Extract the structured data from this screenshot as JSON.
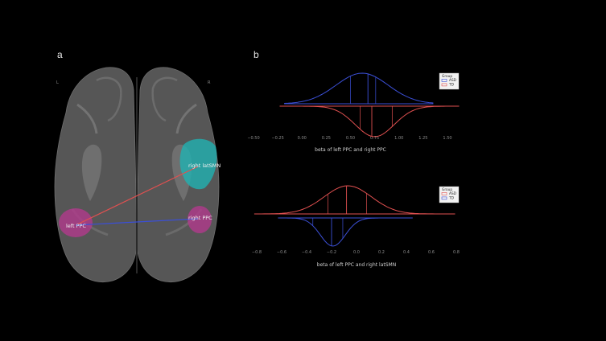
{
  "panels": {
    "a": {
      "label": "a",
      "side_left": "L",
      "side_right": "R",
      "regions": {
        "left_ppc": "left PPC",
        "right_ppc": "right PPC",
        "right_latsmn": "right latSMN"
      },
      "colors": {
        "brain": "#5a5a5a",
        "ppc": "#b23a8c",
        "latsmn": "#1fb3b3",
        "asd_line": "#e05050",
        "td_line": "#3b4fd6"
      }
    },
    "b": {
      "label": "b"
    }
  },
  "chart_data": [
    {
      "type": "violin",
      "xlabel": "beta of left PPC and right PPC",
      "ylabel": "",
      "xlim": [
        -0.5,
        1.5
      ],
      "ticks": [
        "-0.50",
        "-0.25",
        "0.00",
        "0.25",
        "0.50",
        "0.75",
        "1.00",
        "1.25",
        "1.50"
      ],
      "legend": {
        "title": "Group",
        "position": "top-right",
        "entries": [
          {
            "name": "ASD",
            "color": "#3b4fd6"
          },
          {
            "name": "TD",
            "color": "#e05050"
          }
        ]
      },
      "series": [
        {
          "name": "ASD",
          "side": "top",
          "color": "#3b4fd6",
          "range": [
            -0.18,
            1.35
          ],
          "mean": 0.62,
          "sd": 0.27,
          "quartiles": [
            0.5,
            0.68,
            0.76
          ]
        },
        {
          "name": "TD",
          "side": "bottom",
          "color": "#e05050",
          "range": [
            -0.23,
            1.62
          ],
          "mean": 0.75,
          "sd": 0.2,
          "quartiles": [
            0.6,
            0.72,
            0.93
          ]
        }
      ]
    },
    {
      "type": "violin",
      "xlabel": "beta of left PPC and right latSMN",
      "ylabel": "",
      "xlim": [
        -0.8,
        0.8
      ],
      "ticks": [
        "-0.8",
        "-0.6",
        "-0.4",
        "-0.2",
        "0.0",
        "0.2",
        "0.4",
        "0.6",
        "0.8"
      ],
      "legend": {
        "title": "Group",
        "position": "top-right",
        "entries": [
          {
            "name": "ASD",
            "color": "#e05050"
          },
          {
            "name": "TD",
            "color": "#3b4fd6"
          }
        ]
      },
      "series": [
        {
          "name": "ASD",
          "side": "top",
          "color": "#e05050",
          "range": [
            -0.82,
            0.79
          ],
          "mean": -0.07,
          "sd": 0.19,
          "quartiles": [
            -0.23,
            -0.08,
            0.08
          ]
        },
        {
          "name": "TD",
          "side": "bottom",
          "color": "#3b4fd6",
          "range": [
            -0.63,
            0.45
          ],
          "mean": -0.19,
          "sd": 0.1,
          "quartiles": [
            -0.35,
            -0.2,
            -0.11
          ]
        }
      ]
    }
  ]
}
